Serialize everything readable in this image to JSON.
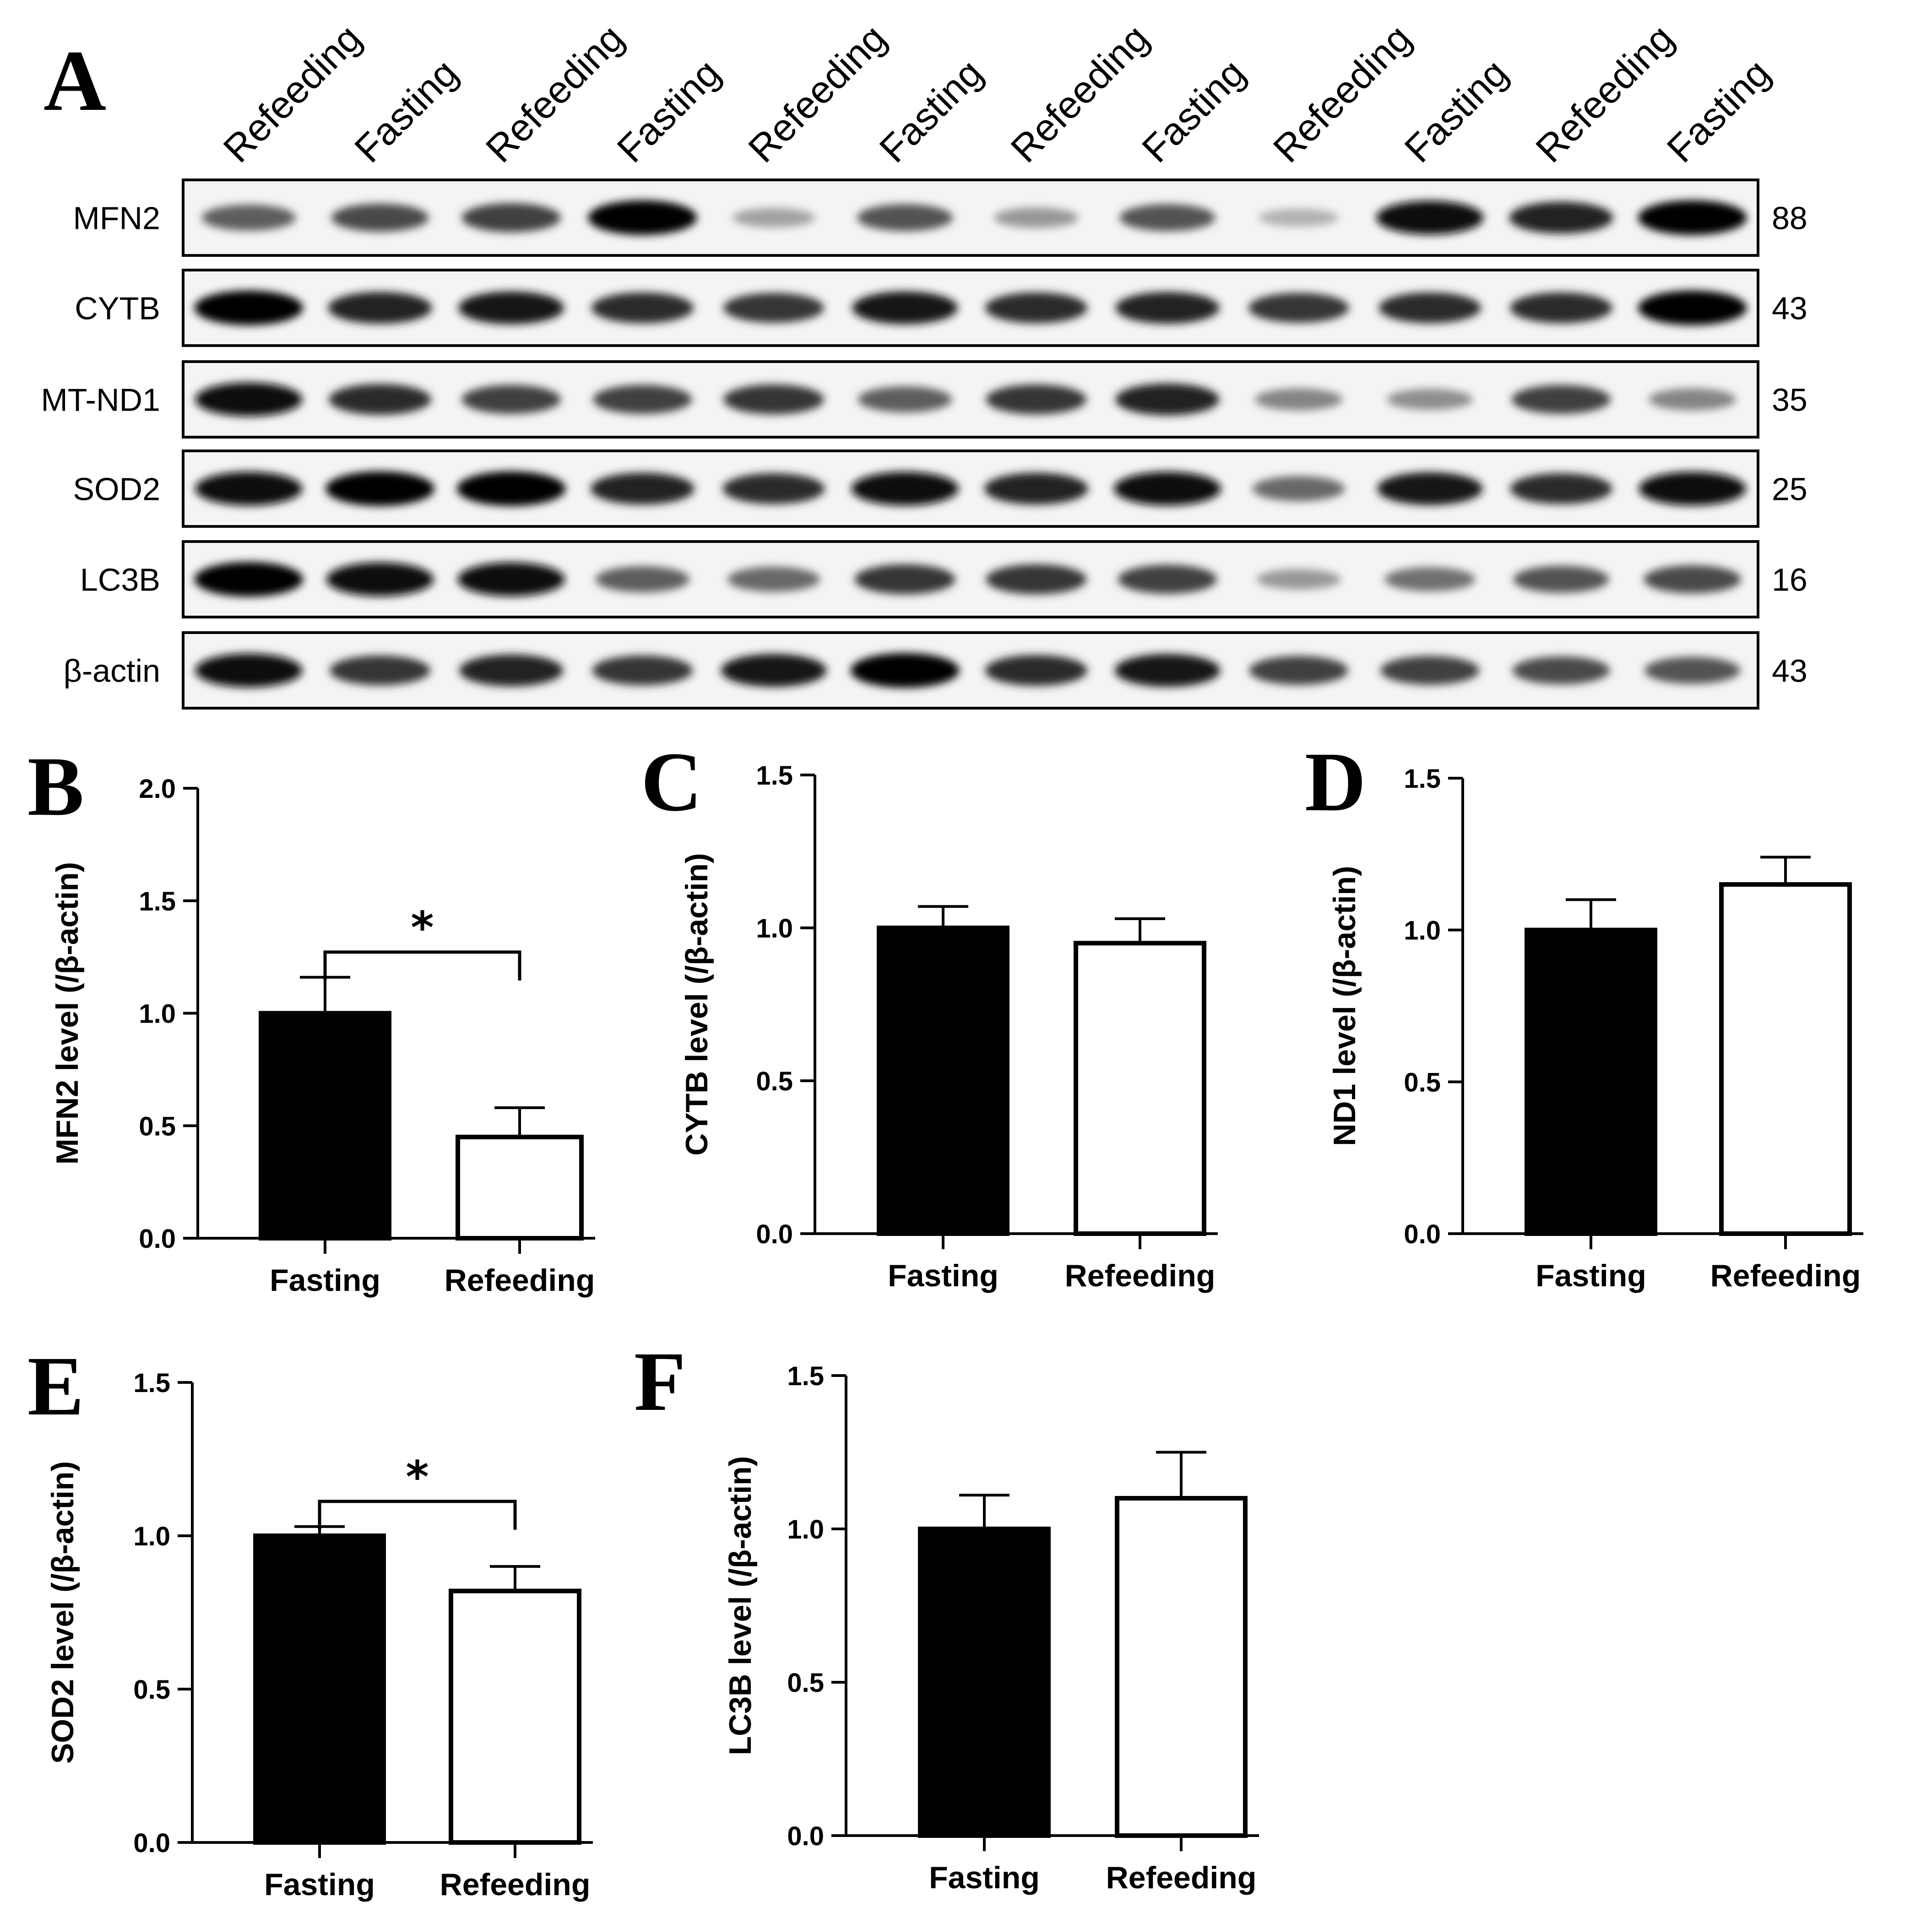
{
  "figure": {
    "panel_a": {
      "letter": "A",
      "lanes": [
        "Refeeding",
        "Fasting",
        "Refeeding",
        "Fasting",
        "Refeeding",
        "Fasting",
        "Refeeding",
        "Fasting",
        "Refeeding",
        "Fasting",
        "Refeeding",
        "Fasting"
      ],
      "blots": [
        {
          "protein": "MFN2",
          "mw": "88",
          "intensity": [
            0.55,
            0.65,
            0.7,
            1.0,
            0.2,
            0.6,
            0.25,
            0.6,
            0.12,
            0.95,
            0.85,
            1.0
          ]
        },
        {
          "protein": "CYTB",
          "mw": "43",
          "intensity": [
            1.0,
            0.85,
            0.9,
            0.8,
            0.75,
            0.9,
            0.8,
            0.85,
            0.75,
            0.8,
            0.8,
            1.0
          ]
        },
        {
          "protein": "MT-ND1",
          "mw": "35",
          "intensity": [
            0.95,
            0.8,
            0.7,
            0.7,
            0.75,
            0.55,
            0.75,
            0.85,
            0.35,
            0.3,
            0.7,
            0.35
          ]
        },
        {
          "protein": "SOD2",
          "mw": "25",
          "intensity": [
            0.95,
            1.0,
            1.0,
            0.85,
            0.8,
            0.95,
            0.85,
            0.95,
            0.5,
            0.9,
            0.8,
            0.95
          ]
        },
        {
          "protein": "LC3B",
          "mw": "16",
          "intensity": [
            1.0,
            0.95,
            0.95,
            0.55,
            0.5,
            0.75,
            0.75,
            0.7,
            0.25,
            0.45,
            0.6,
            0.65
          ]
        },
        {
          "protein": "β-actin",
          "mw": "43",
          "intensity": [
            0.95,
            0.75,
            0.85,
            0.75,
            0.9,
            1.0,
            0.8,
            0.9,
            0.7,
            0.7,
            0.65,
            0.6
          ]
        }
      ]
    }
  },
  "chart_data": [
    {
      "panel": "B",
      "type": "bar",
      "categories": [
        "Fasting",
        "Refeeding"
      ],
      "values": [
        1.0,
        0.45
      ],
      "errors": [
        0.16,
        0.13
      ],
      "fills": [
        "#000000",
        "#ffffff"
      ],
      "ylabel": "MFN2 level (/β-actin)",
      "ylim": [
        0,
        2.0
      ],
      "yticks": [
        "0.0",
        "0.5",
        "1.0",
        "1.5",
        "2.0"
      ],
      "significance": "*"
    },
    {
      "panel": "C",
      "type": "bar",
      "categories": [
        "Fasting",
        "Refeeding"
      ],
      "values": [
        1.0,
        0.95
      ],
      "errors": [
        0.07,
        0.08
      ],
      "fills": [
        "#000000",
        "#ffffff"
      ],
      "ylabel": "CYTB level (/β-actin)",
      "ylim": [
        0,
        1.5
      ],
      "yticks": [
        "0.0",
        "0.5",
        "1.0",
        "1.5"
      ]
    },
    {
      "panel": "D",
      "type": "bar",
      "categories": [
        "Fasting",
        "Refeeding"
      ],
      "values": [
        1.0,
        1.15
      ],
      "errors": [
        0.1,
        0.09
      ],
      "fills": [
        "#000000",
        "#ffffff"
      ],
      "ylabel": "ND1 level (/β-actin)",
      "ylim": [
        0,
        1.5
      ],
      "yticks": [
        "0.0",
        "0.5",
        "1.0",
        "1.5"
      ]
    },
    {
      "panel": "E",
      "type": "bar",
      "categories": [
        "Fasting",
        "Refeeding"
      ],
      "values": [
        1.0,
        0.82
      ],
      "errors": [
        0.03,
        0.08
      ],
      "fills": [
        "#000000",
        "#ffffff"
      ],
      "ylabel": "SOD2 level (/β-actin)",
      "ylim": [
        0,
        1.5
      ],
      "yticks": [
        "0.0",
        "0.5",
        "1.0",
        "1.5"
      ],
      "significance": "*"
    },
    {
      "panel": "F",
      "type": "bar",
      "categories": [
        "Fasting",
        "Refeeding"
      ],
      "values": [
        1.0,
        1.1
      ],
      "errors": [
        0.11,
        0.15
      ],
      "fills": [
        "#000000",
        "#ffffff"
      ],
      "ylabel": "LC3B level (/β-actin)",
      "ylim": [
        0,
        1.5
      ],
      "yticks": [
        "0.0",
        "0.5",
        "1.0",
        "1.5"
      ]
    }
  ]
}
